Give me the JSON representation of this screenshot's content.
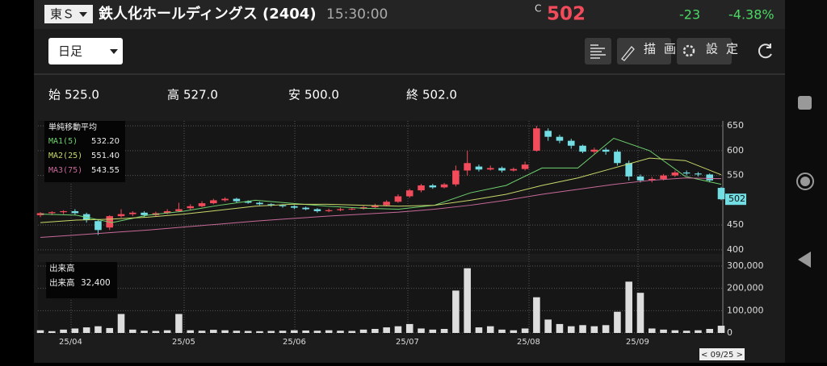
{
  "header": {
    "exchange": "東Ｓ",
    "name": "鉄人化ホールディングス (2404)",
    "time": "15:30:00",
    "price_flag": "C",
    "price": "502",
    "change": "-23",
    "change_pct": "-4.38%"
  },
  "toolbar": {
    "period": "日足",
    "draw": "描画",
    "settings": "設定"
  },
  "ohlc": [
    {
      "label": "始",
      "value": 525,
      "value_label": "525.0"
    },
    {
      "label": "高",
      "value": 527,
      "value_label": "527.0"
    },
    {
      "label": "安",
      "value": 500,
      "value_label": "500.0"
    },
    {
      "label": "終",
      "value": 502,
      "value_label": "502.0"
    }
  ],
  "chart_data": {
    "type": "candlestick",
    "open": [
      470,
      474,
      476,
      478,
      472,
      458,
      445,
      468,
      472,
      475,
      470,
      474,
      478,
      484,
      488,
      494,
      500,
      503,
      498,
      495,
      492,
      490,
      488,
      485,
      482,
      478,
      480,
      482,
      483,
      486,
      490,
      497,
      508,
      520,
      530,
      526,
      532,
      560,
      568,
      562,
      565,
      560,
      563,
      600,
      640,
      628,
      620,
      610,
      598,
      602,
      598,
      575,
      548,
      540,
      543,
      550,
      556,
      554,
      552,
      525
    ],
    "close": [
      474,
      476,
      478,
      474,
      460,
      440,
      468,
      472,
      475,
      470,
      474,
      478,
      482,
      488,
      494,
      500,
      503,
      498,
      495,
      492,
      490,
      488,
      485,
      482,
      478,
      480,
      482,
      483,
      486,
      490,
      497,
      508,
      520,
      530,
      526,
      532,
      560,
      575,
      562,
      565,
      560,
      563,
      572,
      645,
      628,
      620,
      610,
      598,
      602,
      598,
      575,
      548,
      540,
      543,
      550,
      556,
      554,
      552,
      540,
      502
    ],
    "high": [
      476,
      478,
      480,
      482,
      475,
      462,
      470,
      482,
      478,
      478,
      477,
      482,
      495,
      492,
      498,
      503,
      506,
      505,
      500,
      497,
      494,
      492,
      490,
      487,
      484,
      483,
      485,
      486,
      489,
      493,
      500,
      512,
      523,
      533,
      533,
      535,
      570,
      600,
      572,
      570,
      568,
      566,
      578,
      650,
      645,
      632,
      624,
      612,
      606,
      606,
      602,
      580,
      552,
      547,
      553,
      560,
      560,
      557,
      554,
      527
    ],
    "low": [
      466,
      470,
      472,
      470,
      455,
      430,
      440,
      465,
      468,
      466,
      468,
      472,
      476,
      480,
      486,
      492,
      497,
      495,
      493,
      490,
      487,
      485,
      482,
      480,
      475,
      476,
      478,
      480,
      481,
      484,
      488,
      495,
      505,
      516,
      523,
      524,
      528,
      550,
      558,
      560,
      556,
      558,
      560,
      598,
      620,
      615,
      604,
      595,
      594,
      592,
      570,
      540,
      536,
      536,
      540,
      547,
      550,
      548,
      536,
      500
    ],
    "volume": [
      12000,
      8000,
      15000,
      20000,
      25000,
      30000,
      22000,
      85000,
      15000,
      10000,
      9000,
      12000,
      85000,
      12000,
      10000,
      14000,
      12000,
      10000,
      9000,
      8000,
      9000,
      10000,
      12000,
      11000,
      10000,
      12000,
      10000,
      9000,
      15000,
      18000,
      25000,
      30000,
      40000,
      20000,
      15000,
      18000,
      190000,
      290000,
      25000,
      30000,
      15000,
      12000,
      20000,
      160000,
      60000,
      40000,
      30000,
      35000,
      30000,
      35000,
      95000,
      230000,
      180000,
      20000,
      15000,
      12000,
      10000,
      12000,
      18000,
      32400
    ],
    "up_color": "#f24b5b",
    "down_color": "#72dde3",
    "ma_title": "単純移動平均",
    "ma": [
      {
        "name": "MA1(5)",
        "color": "#6fd36f",
        "values": [
          472,
          470,
          455,
          470,
          478,
          490,
          500,
          494,
          488,
          484,
          482,
          490,
          515,
          530,
          565,
          565,
          625,
          600,
          548,
          532.2
        ],
        "value_label": "532.20"
      },
      {
        "name": "MA2(25)",
        "color": "#c9d86a",
        "values": [
          455,
          460,
          462,
          466,
          472,
          480,
          488,
          492,
          492,
          490,
          488,
          490,
          500,
          512,
          530,
          545,
          565,
          585,
          580,
          551.4
        ],
        "value_label": "551.40"
      },
      {
        "name": "MA3(75)",
        "color": "#c86a9a",
        "values": [
          425,
          430,
          435,
          440,
          446,
          452,
          458,
          463,
          468,
          472,
          476,
          482,
          490,
          500,
          512,
          522,
          532,
          540,
          545,
          543.55
        ],
        "value_label": "543.55"
      }
    ],
    "ylim": [
      395,
      660
    ],
    "yticks": [
      400,
      450,
      550,
      600,
      650
    ],
    "last_price": 502,
    "volume_title": "出来高",
    "volume_label": "出来高",
    "volume_value_label": "32,400",
    "vlim": [
      0,
      300000
    ],
    "vticks": [
      0,
      {
        "value": 100000,
        "label": "100,000"
      },
      {
        "value": 200000,
        "label": "200,000"
      },
      {
        "value": 300000,
        "label": "300,000"
      }
    ],
    "months": [
      "25/04",
      "25/05",
      "25/06",
      "25/07",
      "25/08",
      "25/09"
    ],
    "cursor_date": "< 09/25 >"
  }
}
